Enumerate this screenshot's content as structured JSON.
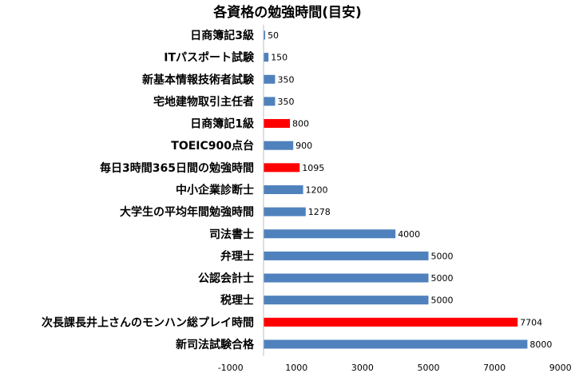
{
  "chart_data": {
    "type": "bar",
    "orientation": "horizontal",
    "title": "各資格の勉強時間(目安)",
    "xlabel": "",
    "ylabel": "",
    "xlim": [
      -1000,
      9000
    ],
    "xticks": [
      "-1000",
      "1000",
      "3000",
      "5000",
      "7000",
      "9000"
    ],
    "xtick_values": [
      -1000,
      1000,
      3000,
      5000,
      7000,
      9000
    ],
    "grid": false,
    "legend": "none",
    "colors": {
      "default": "#4f81bd",
      "highlight": "#ff0000"
    },
    "categories": [
      "日商簿記3級",
      "ITパスポート試験",
      "新基本情報技術者試験",
      "宅地建物取引主任者",
      "日商簿記1級",
      "TOEIC900点台",
      "毎日3時間365日間の勉強時間",
      "中小企業診断士",
      "大学生の平均年間勉強時間",
      "司法書士",
      "弁理士",
      "公認会計士",
      "税理士",
      "次長課長井上さんのモンハン総プレイ時間",
      "新司法試験合格"
    ],
    "values": [
      50,
      150,
      350,
      350,
      800,
      900,
      1095,
      1200,
      1278,
      4000,
      5000,
      5000,
      5000,
      7704,
      8000
    ],
    "data_labels": [
      "50",
      "150",
      "350",
      "350",
      "800",
      "900",
      "1095",
      "1200",
      "1278",
      "4000",
      "5000",
      "5000",
      "5000",
      "7704",
      "8000"
    ],
    "highlighted": [
      false,
      false,
      false,
      false,
      true,
      false,
      true,
      false,
      false,
      false,
      false,
      false,
      false,
      true,
      false
    ]
  }
}
